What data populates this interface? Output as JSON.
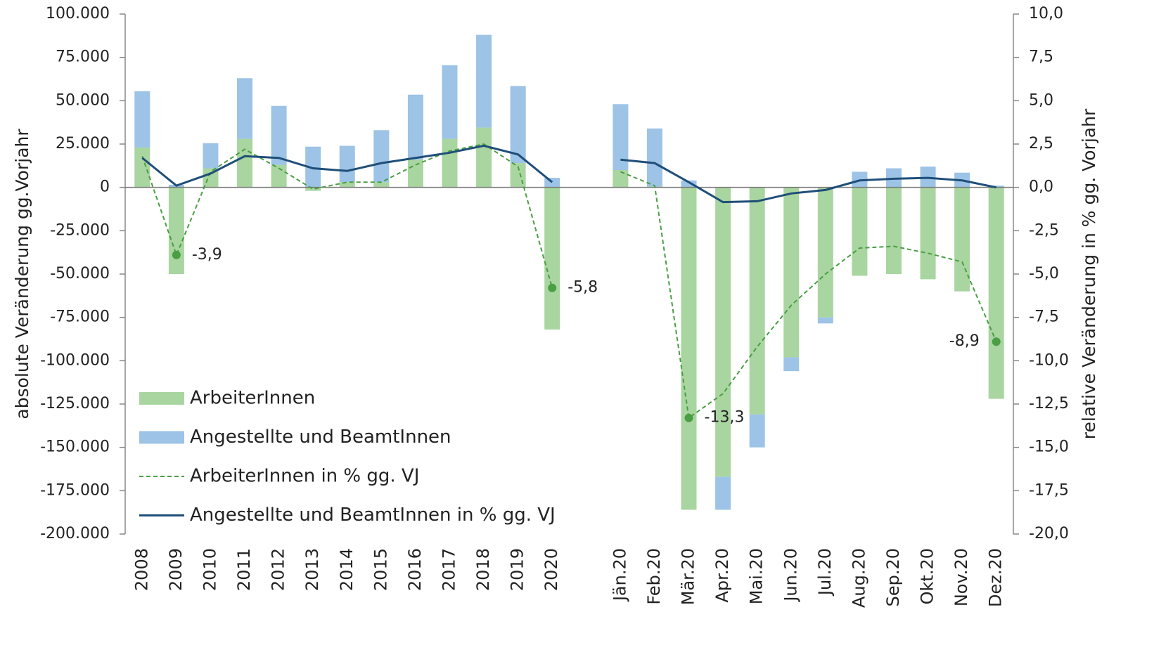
{
  "chart_data": {
    "type": "combo",
    "stacked": true,
    "y_label": "absolute Veränderung gg.Vorjahr",
    "y2_label": "relative Veränderung in % gg. Vorjahr",
    "legend": "lower left",
    "categories": [
      "2008",
      "2009",
      "2010",
      "2011",
      "2012",
      "2013",
      "2014",
      "2015",
      "2016",
      "2017",
      "2018",
      "2019",
      "2020",
      null,
      "Jän.20",
      "Feb.20",
      "Mär.20",
      "Apr.20",
      "Mai.20",
      "Jun.20",
      "Jul.20",
      "Aug.20",
      "Sep.20",
      "Okt.20",
      "Nov.20",
      "Dez.20"
    ],
    "ylim": [
      -200000,
      100000
    ],
    "yticks": [
      {
        "value": 100000,
        "label": "100.000"
      },
      {
        "value": 75000,
        "label": "75.000"
      },
      {
        "value": 50000,
        "label": "50.000"
      },
      {
        "value": 25000,
        "label": "25.000"
      },
      0,
      {
        "value": -25000,
        "label": "-25.000"
      },
      {
        "value": -50000,
        "label": "-50.000"
      },
      {
        "value": -75000,
        "label": "-75.000"
      },
      {
        "value": -100000,
        "label": "-100.000"
      },
      {
        "value": -125000,
        "label": "-125.000"
      },
      {
        "value": -150000,
        "label": "-150.000"
      },
      {
        "value": -175000,
        "label": "-175.000"
      },
      {
        "value": -200000,
        "label": "-200.000"
      }
    ],
    "y2lim": [
      -20,
      10
    ],
    "y2ticks": [
      {
        "value": 10,
        "label": "10,0"
      },
      {
        "value": 7.5,
        "label": "7,5"
      },
      {
        "value": 5,
        "label": "5,0"
      },
      {
        "value": 2.5,
        "label": "2,5"
      },
      {
        "value": 0,
        "label": "0,0"
      },
      {
        "value": -2.5,
        "label": "-2,5"
      },
      {
        "value": -5,
        "label": "-5,0"
      },
      {
        "value": -7.5,
        "label": "-7,5"
      },
      {
        "value": -10,
        "label": "-10,0"
      },
      {
        "value": -12.5,
        "label": "-12,5"
      },
      {
        "value": -15,
        "label": "-15,0"
      },
      {
        "value": -17.5,
        "label": "-17,5"
      },
      {
        "value": -20,
        "label": "-20,0"
      }
    ],
    "series": [
      {
        "name": "ArbeiterInnen",
        "type": "bar",
        "color": "#a9d5a0",
        "values": [
          23000,
          -50000,
          11000,
          28000,
          13000,
          -2000,
          3000,
          3000,
          16000,
          28000,
          34500,
          14000,
          -82000,
          null,
          10000,
          500,
          -186000,
          -167000,
          -131000,
          -98000,
          -75000,
          -51000,
          -50000,
          -53000,
          -60000,
          -122000
        ]
      },
      {
        "name": "Angestellte und BeamtInnen",
        "type": "bar",
        "color": "#9dc3e6",
        "values": [
          32500,
          1500,
          14500,
          35000,
          34000,
          23500,
          21000,
          30000,
          37500,
          42500,
          53500,
          44500,
          5500,
          null,
          38000,
          33500,
          4000,
          -19000,
          -19000,
          -8000,
          -3500,
          9000,
          11000,
          12000,
          8500,
          1000
        ]
      },
      {
        "name": "ArbeiterInnen in % gg. VJ",
        "type": "line",
        "axis": "y2",
        "dashed": true,
        "color": "#4a9e44",
        "values": [
          1.8,
          -3.9,
          0.9,
          2.2,
          1.1,
          -0.1,
          0.3,
          0.3,
          1.3,
          2.1,
          2.5,
          1.2,
          -5.8,
          null,
          0.9,
          0.1,
          -13.3,
          -11.9,
          -9.2,
          -6.8,
          -5.0,
          -3.5,
          -3.4,
          -3.8,
          -4.3,
          -8.9
        ],
        "value_labels": [
          null,
          "-3,9",
          null,
          null,
          null,
          null,
          null,
          null,
          null,
          null,
          null,
          null,
          "-5,8",
          null,
          null,
          null,
          "-13,3",
          null,
          null,
          null,
          null,
          null,
          null,
          null,
          null,
          "-8,9"
        ]
      },
      {
        "name": "Angestellte und BeamtInnen in % gg. VJ",
        "type": "line",
        "axis": "y2",
        "dashed": false,
        "color": "#1f4e79",
        "values": [
          1.7,
          0.1,
          0.8,
          1.8,
          1.7,
          1.1,
          0.95,
          1.4,
          1.7,
          2.0,
          2.4,
          1.9,
          0.3,
          null,
          1.6,
          1.4,
          0.3,
          -0.85,
          -0.8,
          -0.35,
          -0.15,
          0.4,
          0.5,
          0.55,
          0.4,
          0.0
        ]
      }
    ]
  }
}
